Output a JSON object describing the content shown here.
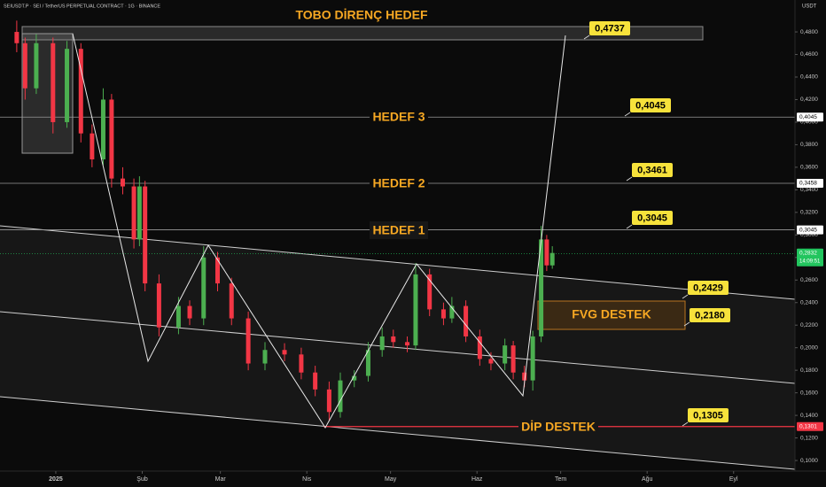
{
  "header": "SEIUSDT.P · SEI / TetherUS PERPETUAL CONTRACT · 1G · BINANCE",
  "chart_data": {
    "type": "candlestick",
    "currency": "USDT",
    "up_color": "#4caf50",
    "down_color": "#f23645",
    "x": [
      -13,
      -10,
      -6,
      0,
      5,
      10,
      14,
      18,
      21,
      25,
      29,
      31,
      33,
      38,
      45,
      49,
      54,
      59,
      64,
      70,
      76,
      83,
      89,
      94,
      99,
      103,
      108,
      113,
      118,
      122,
      127,
      130,
      135,
      140,
      143,
      148,
      153,
      157,
      162,
      165,
      169,
      172,
      175,
      177,
      179
    ],
    "open": [
      0.48,
      0.47,
      0.43,
      0.47,
      0.4,
      0.465,
      0.39,
      0.367,
      0.42,
      0.35,
      0.343,
      0.296,
      0.343,
      0.257,
      0.218,
      0.237,
      0.226,
      0.28,
      0.257,
      0.226,
      0.186,
      0.198,
      0.194,
      0.178,
      0.163,
      0.143,
      0.171,
      0.175,
      0.198,
      0.21,
      0.205,
      0.202,
      0.265,
      0.234,
      0.226,
      0.237,
      0.21,
      0.19,
      0.186,
      0.202,
      0.178,
      0.171,
      0.21,
      0.296,
      0.273
    ],
    "high": [
      0.49,
      0.475,
      0.478,
      0.475,
      0.472,
      0.47,
      0.398,
      0.43,
      0.425,
      0.36,
      0.35,
      0.352,
      0.348,
      0.265,
      0.245,
      0.242,
      0.29,
      0.285,
      0.262,
      0.232,
      0.205,
      0.204,
      0.2,
      0.184,
      0.17,
      0.178,
      0.18,
      0.205,
      0.218,
      0.216,
      0.21,
      0.275,
      0.27,
      0.24,
      0.245,
      0.242,
      0.216,
      0.196,
      0.208,
      0.206,
      0.184,
      0.215,
      0.308,
      0.3,
      0.29
    ],
    "low": [
      0.462,
      0.42,
      0.425,
      0.39,
      0.395,
      0.382,
      0.36,
      0.362,
      0.342,
      0.336,
      0.288,
      0.29,
      0.25,
      0.21,
      0.212,
      0.22,
      0.22,
      0.25,
      0.22,
      0.18,
      0.18,
      0.188,
      0.172,
      0.157,
      0.135,
      0.138,
      0.165,
      0.17,
      0.192,
      0.2,
      0.196,
      0.198,
      0.228,
      0.22,
      0.222,
      0.205,
      0.184,
      0.18,
      0.18,
      0.172,
      0.165,
      0.162,
      0.205,
      0.268,
      0.27
    ],
    "close": [
      0.47,
      0.43,
      0.47,
      0.4,
      0.465,
      0.39,
      0.367,
      0.42,
      0.35,
      0.343,
      0.296,
      0.343,
      0.257,
      0.218,
      0.237,
      0.226,
      0.28,
      0.257,
      0.226,
      0.186,
      0.198,
      0.194,
      0.178,
      0.163,
      0.143,
      0.171,
      0.175,
      0.198,
      0.21,
      0.205,
      0.202,
      0.265,
      0.234,
      0.226,
      0.237,
      0.21,
      0.19,
      0.186,
      0.202,
      0.178,
      0.171,
      0.21,
      0.296,
      0.273,
      0.284
    ],
    "xlim": [
      -19,
      266
    ],
    "xticks": [
      {
        "value": 1,
        "label": "2025"
      },
      {
        "value": 32,
        "label": "Şub"
      },
      {
        "value": 60,
        "label": "Mar"
      },
      {
        "value": 91,
        "label": "Nis"
      },
      {
        "value": 121,
        "label": "May"
      },
      {
        "value": 152,
        "label": "Haz"
      },
      {
        "value": 182,
        "label": "Tem"
      },
      {
        "value": 213,
        "label": "Ağu"
      },
      {
        "value": 244,
        "label": "Eyl"
      }
    ],
    "ylim": [
      0.0922,
      0.5083
    ],
    "yticks": [
      {
        "value": 0.1,
        "label": "0,1000"
      },
      {
        "value": 0.12,
        "label": "0,1200"
      },
      {
        "value": 0.14,
        "label": "0,1400"
      },
      {
        "value": 0.16,
        "label": "0,1600"
      },
      {
        "value": 0.18,
        "label": "0,1800"
      },
      {
        "value": 0.2,
        "label": "0,2000"
      },
      {
        "value": 0.22,
        "label": "0,2200"
      },
      {
        "value": 0.24,
        "label": "0,2400"
      },
      {
        "value": 0.26,
        "label": "0,2600"
      },
      {
        "value": 0.28,
        "label": "0,2800"
      },
      {
        "value": 0.3,
        "label": "0,3000"
      },
      {
        "value": 0.32,
        "label": "0,3200"
      },
      {
        "value": 0.34,
        "label": "0,3400"
      },
      {
        "value": 0.36,
        "label": "0,3600"
      },
      {
        "value": 0.38,
        "label": "0,3800"
      },
      {
        "value": 0.4,
        "label": "0,4000"
      },
      {
        "value": 0.42,
        "label": "0,4200"
      },
      {
        "value": 0.44,
        "label": "0,4400"
      },
      {
        "value": 0.46,
        "label": "0,4600"
      },
      {
        "value": 0.48,
        "label": "0,4800"
      }
    ],
    "grid": false,
    "price_levels": [
      {
        "value": 0.4045,
        "label": "0,4045",
        "color": "#ffffff"
      },
      {
        "value": 0.3458,
        "label": "0,3458",
        "color": "#ffffff"
      },
      {
        "value": 0.3045,
        "label": "0,3045",
        "color": "#ffffff"
      },
      {
        "value": 0.1301,
        "label": "0,1301",
        "color": "#f23645"
      }
    ],
    "last_price": {
      "value": 0.2832,
      "label": "0,2832",
      "countdown": "14:09:51",
      "color": "#22c55e"
    },
    "targets": [
      {
        "value": 0.4737,
        "label": "0,4737"
      },
      {
        "value": 0.4045,
        "label": "0,4045"
      },
      {
        "value": 0.3461,
        "label": "0,3461"
      },
      {
        "value": 0.3045,
        "label": "0,3045"
      },
      {
        "value": 0.2429,
        "label": "0,2429"
      },
      {
        "value": 0.218,
        "label": "0,2180"
      },
      {
        "value": 0.1305,
        "label": "0,1305"
      }
    ],
    "annotations": [
      "TOBO DİRENÇ HEDEF",
      "HEDEF 3",
      "HEDEF 2",
      "HEDEF 1",
      "FVG DESTEK",
      "DİP DESTEK"
    ]
  }
}
